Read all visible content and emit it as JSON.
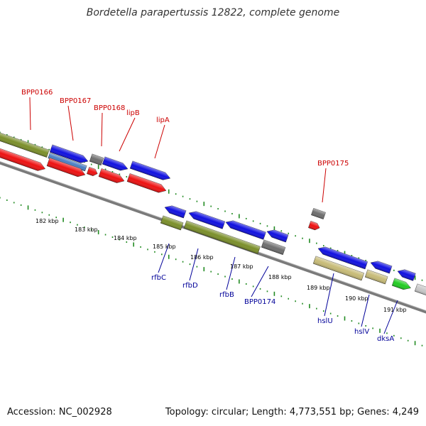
{
  "title": "Bordetella parapertussis 12822, complete genome",
  "footer": {
    "accession": "Accession: NC_002928",
    "summary": "Topology: circular; Length: 4,773,551 bp; Genes: 4,249"
  },
  "colors": {
    "red": "#ee1111",
    "blue": "#1010e0",
    "steelblue": "#4a7fc4",
    "olive": "#7b8f2a",
    "gray": "#6e6e6e",
    "lightgray": "#c8c8c8",
    "khaki": "#c7bb77",
    "green": "#22cc22",
    "tick": "#228b22",
    "label_top": "#cc0000",
    "label_bottom": "#000099"
  },
  "ticks": [
    "182 kbp",
    "183 kbp",
    "184 kbp",
    "185 kbp",
    "186 kbp",
    "187 kbp",
    "188 kbp",
    "189 kbp",
    "190 kbp",
    "191 kbp"
  ],
  "top_labels": [
    "BPP0166",
    "BPP0167",
    "BPP0168",
    "lipB",
    "lipA",
    "BPP0175"
  ],
  "bottom_labels": [
    "rfbC",
    "rfbD",
    "rfbB",
    "BPP0174",
    "hslU",
    "hslV",
    "dksA"
  ]
}
